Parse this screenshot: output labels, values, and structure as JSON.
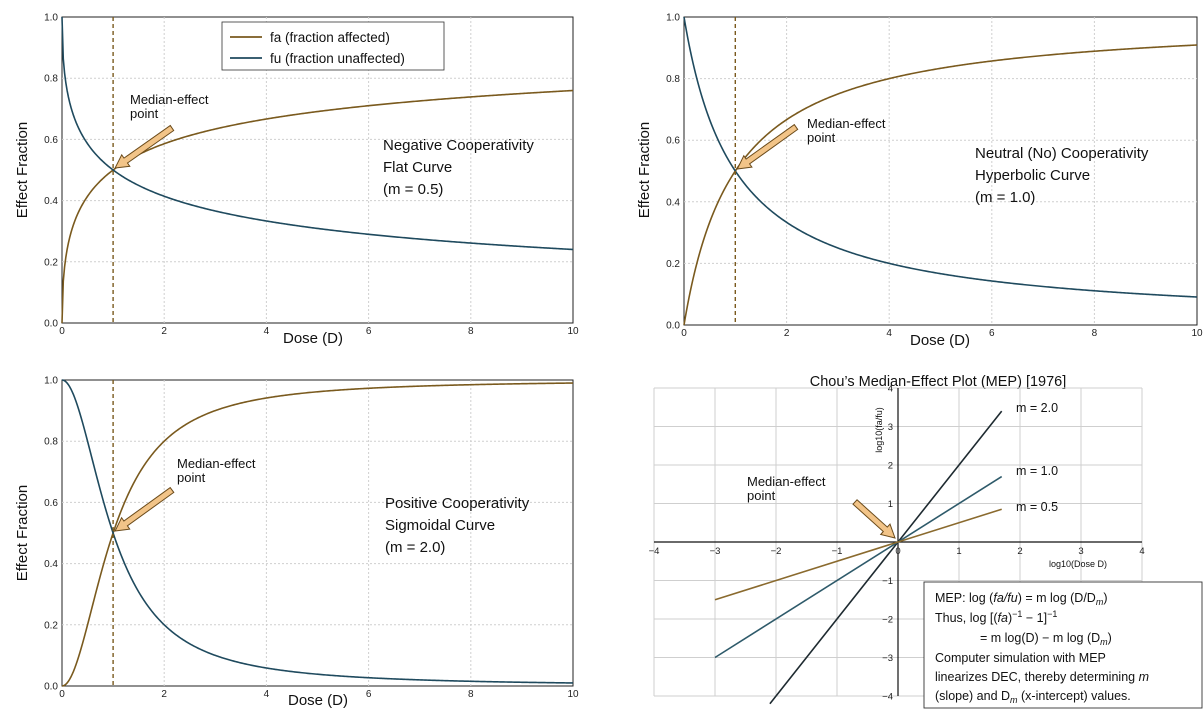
{
  "colors": {
    "fa": "#7a5a1e",
    "fu": "#1f4a5e",
    "dashed": "#7a5a1e",
    "arrow_fill": "#f2c488",
    "arrow_stroke": "#6a4a1a",
    "grid": "#cfcfcf",
    "m2": "#1e2a30",
    "m1": "#2e5a6a",
    "m05": "#8a6a2e"
  },
  "chart_data": [
    {
      "id": "negative",
      "type": "line",
      "x_function": "dose",
      "m": 0.5,
      "Dm": 1,
      "xlim": [
        0,
        10
      ],
      "ylim": [
        0,
        1
      ],
      "xlabel": "Dose (D)",
      "ylabel": "Effect Fraction",
      "xticks": [
        "0",
        "2",
        "4",
        "6",
        "8",
        "10"
      ],
      "yticks": [
        "0.0",
        "0.2",
        "0.4",
        "0.6",
        "0.8",
        "1.0"
      ],
      "grid": true,
      "legend": [
        "fa (fraction affected)",
        "fu (fraction unaffected)"
      ],
      "annotation": [
        "Negative Cooperativity",
        "Flat Curve",
        "(m = 0.5)"
      ],
      "median_label": [
        "Median-effect",
        "point"
      ],
      "median_point": [
        1,
        0.5
      ]
    },
    {
      "id": "neutral",
      "type": "line",
      "m": 1.0,
      "Dm": 1,
      "xlim": [
        0,
        10
      ],
      "ylim": [
        0,
        1
      ],
      "xlabel": "Dose (D)",
      "ylabel": "Effect Fraction",
      "xticks": [
        "0",
        "2",
        "4",
        "6",
        "8",
        "10"
      ],
      "yticks": [
        "0.0",
        "0.2",
        "0.4",
        "0.6",
        "0.8",
        "1.0"
      ],
      "grid": true,
      "annotation": [
        "Neutral (No) Cooperativity",
        "Hyperbolic Curve",
        "(m = 1.0)"
      ],
      "median_label": [
        "Median-effect",
        "point"
      ],
      "median_point": [
        1,
        0.5
      ]
    },
    {
      "id": "positive",
      "type": "line",
      "m": 2.0,
      "Dm": 1,
      "xlim": [
        0,
        10
      ],
      "ylim": [
        0,
        1
      ],
      "xlabel": "Dose (D)",
      "ylabel": "Effect Fraction",
      "xticks": [
        "0",
        "2",
        "4",
        "6",
        "8",
        "10"
      ],
      "yticks": [
        "0.0",
        "0.2",
        "0.4",
        "0.6",
        "0.8",
        "1.0"
      ],
      "grid": true,
      "annotation": [
        "Positive Cooperativity",
        "Sigmoidal Curve",
        "(m = 2.0)"
      ],
      "median_label": [
        "Median-effect",
        "point"
      ],
      "median_point": [
        1,
        0.5
      ]
    },
    {
      "id": "mep",
      "type": "line",
      "title": "Chou’s Median-Effect Plot (MEP) [1976]",
      "xlabel": "log10(Dose D)",
      "ylabel": "log10(fa/fu)",
      "xlim": [
        -4,
        4
      ],
      "ylim": [
        -4,
        4
      ],
      "xticks": [
        "−4",
        "−3",
        "−2",
        "−1",
        "0",
        "1",
        "2",
        "3",
        "4"
      ],
      "yticks": [
        "−4",
        "−3",
        "−2",
        "−1",
        "1",
        "2",
        "3",
        "4"
      ],
      "grid": true,
      "series": [
        {
          "name": "m = 2.0",
          "slope": 2.0,
          "x": [
            -2.1,
            1.7
          ]
        },
        {
          "name": "m = 1.0",
          "slope": 1.0,
          "x": [
            -3.0,
            1.7
          ]
        },
        {
          "name": "m = 0.5",
          "slope": 0.5,
          "x": [
            -3.0,
            1.7
          ]
        }
      ],
      "median_label": [
        "Median-effect",
        "point"
      ],
      "median_point": [
        0,
        0
      ]
    }
  ],
  "mep_box": {
    "line1_a": "MEP:  log (",
    "line1_b": "fa/fu",
    "line1_c": ") = m log (D/D",
    "line1_d": "m",
    "line1_e": ")",
    "line2_a": "Thus,  log [(",
    "line2_b": "fa",
    "line2_c": ")",
    "line2_d": "−1",
    "line2_e": " − 1]",
    "line2_f": "−1",
    "line3_a": "= m log(D) − m log (D",
    "line3_b": "m",
    "line3_c": ")",
    "line4": "Computer simulation with MEP",
    "line5_a": "linearizes DEC, thereby determining ",
    "line5_b": "m",
    "line6_a": "(slope) and D",
    "line6_b": "m",
    "line6_c": " (x-intercept) values."
  }
}
